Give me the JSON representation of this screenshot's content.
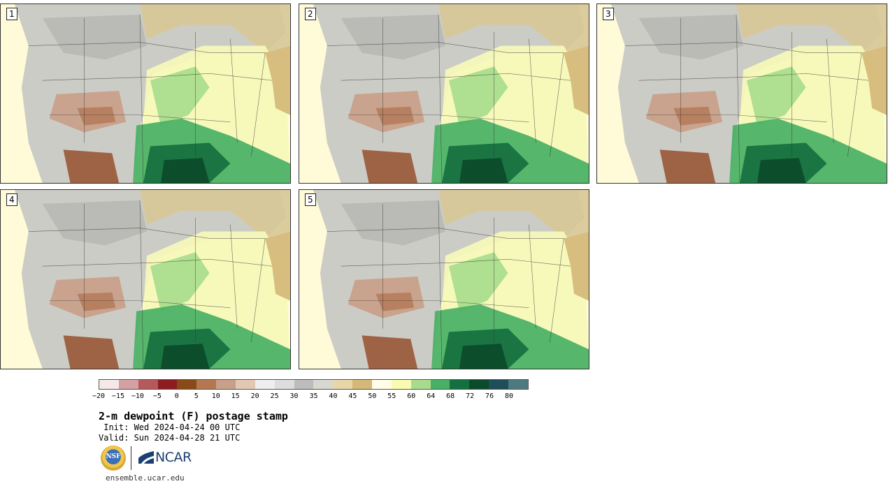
{
  "panels": [
    {
      "label": "1"
    },
    {
      "label": "2"
    },
    {
      "label": "3"
    },
    {
      "label": "4"
    },
    {
      "label": "5"
    }
  ],
  "colorbar": {
    "colors": [
      "#f5e8e8",
      "#d4a0a1",
      "#b4595c",
      "#8c1c1f",
      "#8a4a18",
      "#b37852",
      "#c8a088",
      "#e2c8b4",
      "#eeeeee",
      "#dddddd",
      "#bcbcbc",
      "#d8d8d0",
      "#e6d6a8",
      "#d4b878",
      "#fffde8",
      "#f8fbb0",
      "#a8dc8c",
      "#48b064",
      "#157040",
      "#0b4a2a",
      "#1e4e5a",
      "#4c7a80"
    ],
    "tick_labels": [
      "−20",
      "−15",
      "−10",
      "−5",
      "0",
      "5",
      "10",
      "15",
      "20",
      "25",
      "30",
      "35",
      "40",
      "45",
      "50",
      "55",
      "60",
      "64",
      "68",
      "72",
      "76",
      "80"
    ]
  },
  "title": "2-m dewpoint (F) postage stamp",
  "init": " Init: Wed 2024-04-24 00 UTC",
  "valid": "Valid: Sun 2024-04-28 21 UTC",
  "logos": {
    "nsf": "NSF",
    "ncar": "NCAR"
  },
  "url": "ensemble.ucar.edu"
}
